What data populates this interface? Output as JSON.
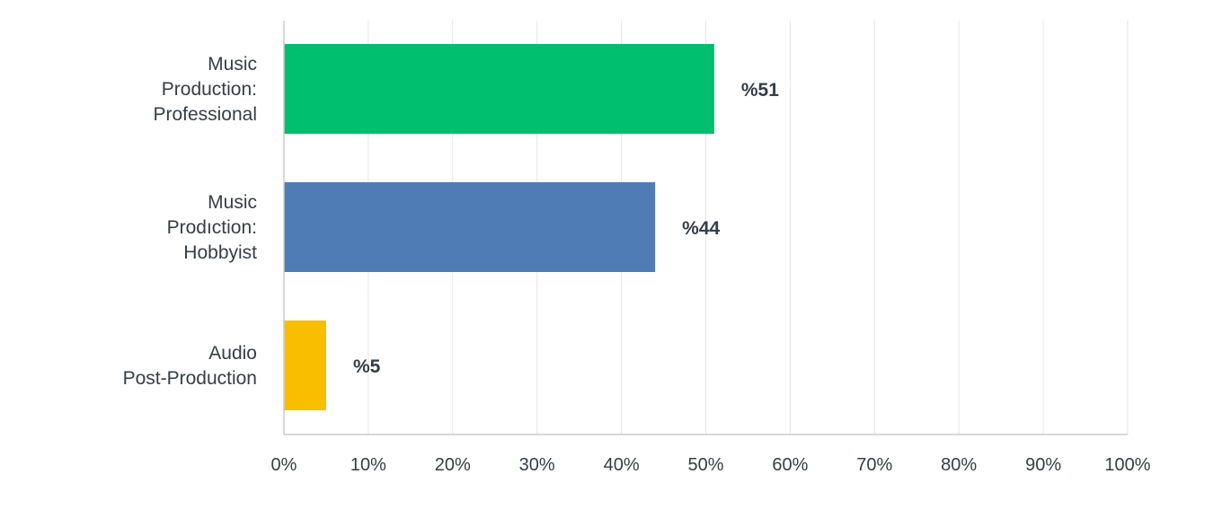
{
  "chart_data": {
    "type": "bar",
    "orientation": "horizontal",
    "categories": [
      [
        "Music",
        "Production:",
        "Professional"
      ],
      [
        "Music",
        "Prodıction:",
        "Hobbyist"
      ],
      [
        "Audio",
        "Post-Production"
      ]
    ],
    "values": [
      51,
      44,
      5
    ],
    "data_labels": [
      "%51",
      "%44",
      "%5"
    ],
    "colors": [
      "#00bf6f",
      "#507cb6",
      "#f9be00"
    ],
    "xlim": [
      0,
      100
    ],
    "xticks": [
      0,
      10,
      20,
      30,
      40,
      50,
      60,
      70,
      80,
      90,
      100
    ],
    "xtick_labels": [
      "0%",
      "10%",
      "20%",
      "30%",
      "40%",
      "50%",
      "60%",
      "70%",
      "80%",
      "90%",
      "100%"
    ],
    "grid": true,
    "legend": "none"
  }
}
